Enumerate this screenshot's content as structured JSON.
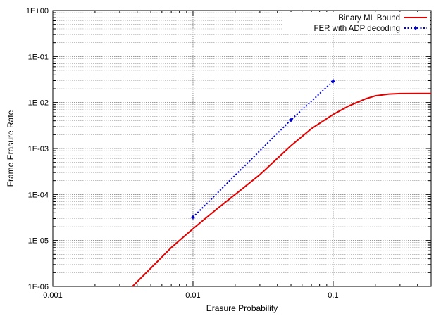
{
  "chart_data": {
    "type": "line",
    "xlabel": "Erasure Probability",
    "ylabel": "Frame Erasure Rate",
    "xscale": "log",
    "yscale": "log",
    "xlim": [
      0.001,
      0.5
    ],
    "ylim": [
      1e-06,
      1
    ],
    "x_ticks": [
      {
        "value": 0.001,
        "label": "0.001"
      },
      {
        "value": 0.01,
        "label": "0.01"
      },
      {
        "value": 0.1,
        "label": "0.1"
      }
    ],
    "y_ticks": [
      {
        "value": 1e-06,
        "label": "1E-06"
      },
      {
        "value": 1e-05,
        "label": "1E-05"
      },
      {
        "value": 0.0001,
        "label": "1E-04"
      },
      {
        "value": 0.001,
        "label": "1E-03"
      },
      {
        "value": 0.01,
        "label": "1E-02"
      },
      {
        "value": 0.1,
        "label": "1E-01"
      },
      {
        "value": 1,
        "label": "1E+00"
      }
    ],
    "grid": true,
    "legend_position": "top-right",
    "series": [
      {
        "name": "Binary ML Bound",
        "color": "#e00000",
        "style": "solid",
        "markers": false,
        "x": [
          0.0037,
          0.005,
          0.007,
          0.01,
          0.015,
          0.02,
          0.03,
          0.05,
          0.07,
          0.1,
          0.13,
          0.17,
          0.2,
          0.25,
          0.3,
          0.4,
          0.5
        ],
        "y": [
          1e-06,
          2.5e-06,
          7e-06,
          1.8e-05,
          5e-05,
          0.0001,
          0.00027,
          0.00115,
          0.0027,
          0.0055,
          0.0085,
          0.012,
          0.014,
          0.0153,
          0.0157,
          0.0158,
          0.0158
        ]
      },
      {
        "name": "FER with  ADP decoding",
        "color": "#0000cc",
        "style": "dotted",
        "markers": true,
        "x": [
          0.01,
          0.05,
          0.1
        ],
        "y": [
          3.2e-05,
          0.0042,
          0.029
        ]
      }
    ]
  }
}
